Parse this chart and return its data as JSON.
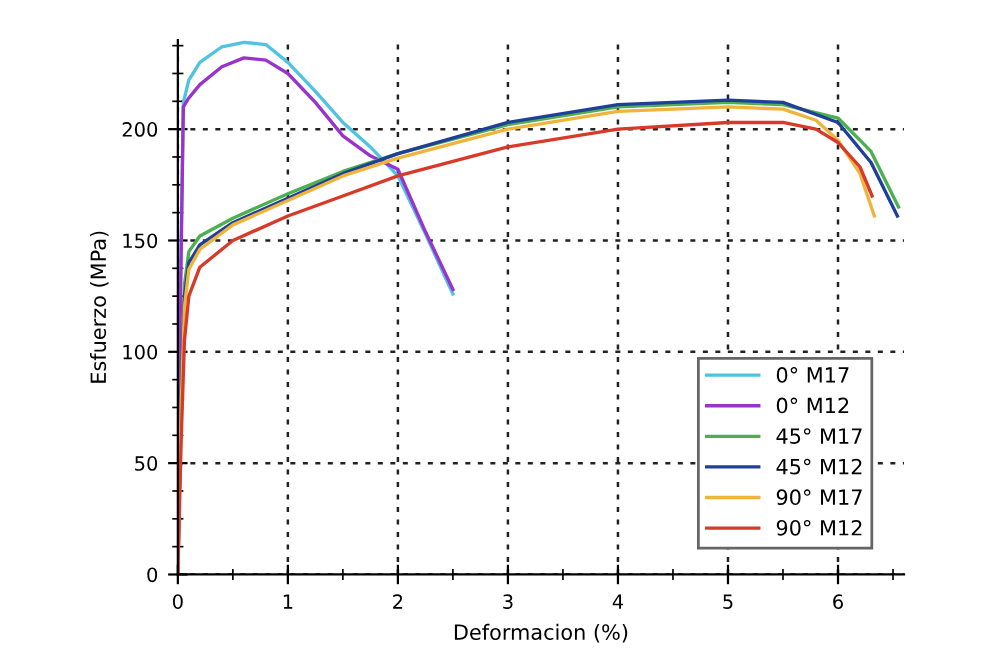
{
  "chart_data": {
    "type": "line",
    "xlabel": "Deformacion (%)",
    "ylabel": "Esfuerzo (MPa)",
    "xlim": [
      0,
      6.6
    ],
    "ylim": [
      0,
      240
    ],
    "xticks": [
      0,
      1,
      2,
      3,
      4,
      5,
      6
    ],
    "yticks": [
      0,
      50,
      100,
      150,
      200
    ],
    "grid": true,
    "line_style": "solid",
    "legend": "bottom right",
    "series": [
      {
        "name": "0° M17",
        "color": "#4fc3e0",
        "x": [
          0,
          0.02,
          0.05,
          0.1,
          0.2,
          0.4,
          0.6,
          0.8,
          1.0,
          1.25,
          1.5,
          1.75,
          2.0,
          2.25,
          2.5
        ],
        "values": [
          0,
          120,
          212,
          222,
          230,
          237,
          239,
          238,
          230,
          217,
          203,
          192,
          179,
          153,
          126
        ]
      },
      {
        "name": "0° M12",
        "color": "#9933cc",
        "x": [
          0,
          0.02,
          0.05,
          0.1,
          0.2,
          0.4,
          0.6,
          0.8,
          1.0,
          1.25,
          1.5,
          1.75,
          2.0,
          2.25,
          2.5
        ],
        "values": [
          0,
          110,
          210,
          214,
          220,
          228,
          232,
          231,
          225,
          212,
          197,
          188,
          182,
          154,
          128
        ]
      },
      {
        "name": "45° M17",
        "color": "#4caf50",
        "x": [
          0,
          0.03,
          0.06,
          0.1,
          0.2,
          0.5,
          1.0,
          1.5,
          2.0,
          3.0,
          4.0,
          5.0,
          5.5,
          6.0,
          6.3,
          6.55
        ],
        "values": [
          0,
          80,
          130,
          145,
          152,
          160,
          171,
          181,
          189,
          202,
          210,
          212,
          211,
          205,
          190,
          165
        ]
      },
      {
        "name": "45° M12",
        "color": "#1f3f99",
        "x": [
          0,
          0.03,
          0.06,
          0.1,
          0.2,
          0.5,
          1.0,
          1.5,
          2.0,
          3.0,
          4.0,
          5.0,
          5.5,
          6.0,
          6.3,
          6.54
        ],
        "values": [
          0,
          80,
          125,
          140,
          148,
          158,
          169,
          180,
          189,
          203,
          211,
          213,
          212,
          203,
          185,
          161
        ]
      },
      {
        "name": "90° M17",
        "color": "#f0b43c",
        "x": [
          0,
          0.03,
          0.06,
          0.1,
          0.2,
          0.5,
          1.0,
          1.5,
          2.0,
          3.0,
          4.0,
          5.0,
          5.5,
          5.8,
          6.0,
          6.2,
          6.33
        ],
        "values": [
          0,
          75,
          120,
          137,
          146,
          157,
          168,
          179,
          187,
          200,
          208,
          210,
          209,
          204,
          195,
          180,
          161
        ]
      },
      {
        "name": "90° M12",
        "color": "#d83a2a",
        "x": [
          0,
          0.03,
          0.06,
          0.1,
          0.2,
          0.5,
          1.0,
          1.5,
          2.0,
          3.0,
          4.0,
          5.0,
          5.5,
          5.8,
          6.0,
          6.2,
          6.31
        ],
        "values": [
          0,
          60,
          105,
          125,
          138,
          150,
          161,
          170,
          179,
          192,
          200,
          203,
          203,
          200,
          194,
          183,
          170
        ]
      }
    ]
  }
}
